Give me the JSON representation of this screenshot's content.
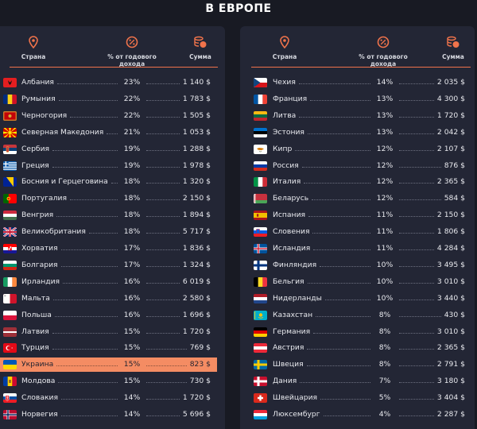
{
  "title": "В ЕВРОПЕ",
  "columns": {
    "country": "Страна",
    "percent": "% от годового дохода",
    "amount": "Сумма"
  },
  "icons": {
    "country": "location-pin-icon",
    "percent": "percent-badge-icon",
    "amount": "coins-icon"
  },
  "colors": {
    "accent": "#f0734b",
    "highlight": "#f48c63",
    "panel": "#232635",
    "background": "#181a23"
  },
  "left_rows": [
    {
      "country": "Албания",
      "percent": "23%",
      "amount": "1 140 $"
    },
    {
      "country": "Румыния",
      "percent": "22%",
      "amount": "1 783 $"
    },
    {
      "country": "Черногория",
      "percent": "22%",
      "amount": "1 505 $"
    },
    {
      "country": "Северная Македония",
      "percent": "21%",
      "amount": "1 053 $"
    },
    {
      "country": "Сербия",
      "percent": "19%",
      "amount": "1 288 $"
    },
    {
      "country": "Греция",
      "percent": "19%",
      "amount": "1 978 $"
    },
    {
      "country": "Босния и Герцеговина",
      "percent": "18%",
      "amount": "1 320 $"
    },
    {
      "country": "Португалия",
      "percent": "18%",
      "amount": "2 150 $"
    },
    {
      "country": "Венгрия",
      "percent": "18%",
      "amount": "1 894 $"
    },
    {
      "country": "Великобритания",
      "percent": "18%",
      "amount": "5 717 $"
    },
    {
      "country": "Хорватия",
      "percent": "17%",
      "amount": "1 836 $"
    },
    {
      "country": "Болгария",
      "percent": "17%",
      "amount": "1 324 $"
    },
    {
      "country": "Ирландия",
      "percent": "16%",
      "amount": "6 019 $"
    },
    {
      "country": "Мальта",
      "percent": "16%",
      "amount": "2 580 $"
    },
    {
      "country": "Польша",
      "percent": "16%",
      "amount": "1 696 $"
    },
    {
      "country": "Латвия",
      "percent": "15%",
      "amount": "1 720 $"
    },
    {
      "country": "Турция",
      "percent": "15%",
      "amount": "769 $"
    },
    {
      "country": "Украина",
      "percent": "15%",
      "amount": "823 $",
      "highlight": true
    },
    {
      "country": "Молдова",
      "percent": "15%",
      "amount": "730 $"
    },
    {
      "country": "Словакия",
      "percent": "14%",
      "amount": "1 720 $"
    },
    {
      "country": "Норвегия",
      "percent": "14%",
      "amount": "5 696 $"
    }
  ],
  "right_rows": [
    {
      "country": "Чехия",
      "percent": "14%",
      "amount": "2 035 $"
    },
    {
      "country": "Франция",
      "percent": "13%",
      "amount": "4 300 $"
    },
    {
      "country": "Литва",
      "percent": "13%",
      "amount": "1 720 $"
    },
    {
      "country": "Эстония",
      "percent": "13%",
      "amount": "2 042 $"
    },
    {
      "country": "Кипр",
      "percent": "12%",
      "amount": "2 107 $"
    },
    {
      "country": "Россия",
      "percent": "12%",
      "amount": "876 $"
    },
    {
      "country": "Италия",
      "percent": "12%",
      "amount": "2 365 $"
    },
    {
      "country": "Беларусь",
      "percent": "12%",
      "amount": "584 $"
    },
    {
      "country": "Испания",
      "percent": "11%",
      "amount": "2 150 $"
    },
    {
      "country": "Словения",
      "percent": "11%",
      "amount": "1 806 $"
    },
    {
      "country": "Исландия",
      "percent": "11%",
      "amount": "4 284 $"
    },
    {
      "country": "Финляндия",
      "percent": "10%",
      "amount": "3 495 $"
    },
    {
      "country": "Бельгия",
      "percent": "10%",
      "amount": "3 010 $"
    },
    {
      "country": "Нидерланды",
      "percent": "10%",
      "amount": "3 440 $"
    },
    {
      "country": "Казахстан",
      "percent": "8%",
      "amount": "430 $"
    },
    {
      "country": "Германия",
      "percent": "8%",
      "amount": "3 010 $"
    },
    {
      "country": "Австрия",
      "percent": "8%",
      "amount": "2 365 $"
    },
    {
      "country": "Швеция",
      "percent": "8%",
      "amount": "2 791 $"
    },
    {
      "country": "Дания",
      "percent": "7%",
      "amount": "3 180 $"
    },
    {
      "country": "Швейцария",
      "percent": "5%",
      "amount": "3 404 $"
    },
    {
      "country": "Люксембург",
      "percent": "4%",
      "amount": "2 287 $"
    }
  ]
}
